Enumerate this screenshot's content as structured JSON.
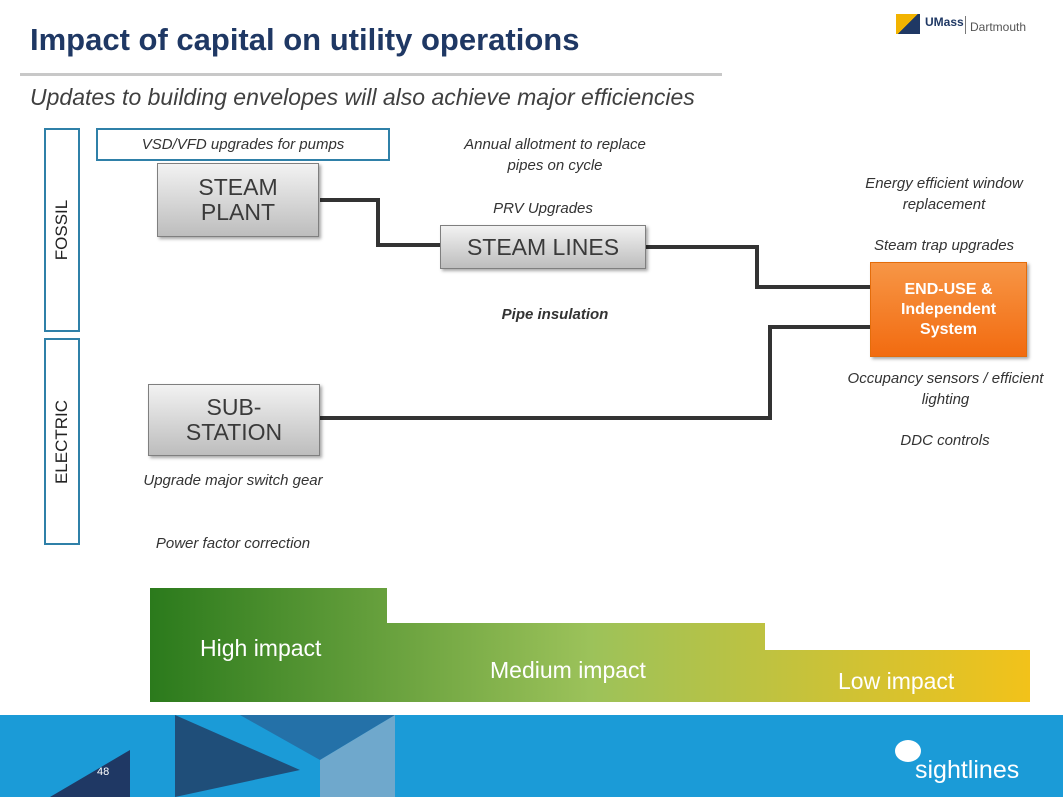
{
  "header": {
    "title": "Impact of capital on utility operations",
    "subtitle": "Updates to building envelopes will also achieve major efficiencies",
    "logo_primary": "UMass",
    "logo_secondary": "Dartmouth"
  },
  "sections": [
    "FOSSIL",
    "ELECTRIC"
  ],
  "nodes": [
    {
      "label": "STEAM PLANT"
    },
    {
      "label": "STEAM LINES"
    },
    {
      "label": "SUB-STATION"
    },
    {
      "label": "END-USE & Independent System"
    }
  ],
  "annotations": [
    "VSD/VFD upgrades for pumps",
    "Annual allotment to replace pipes on cycle",
    "PRV Upgrades",
    "Pipe insulation",
    "Energy efficient window replacement",
    "Steam trap upgrades",
    "Occupancy sensors / efficient lighting",
    "DDC controls",
    "Upgrade major switch gear",
    "Power factor correction"
  ],
  "impact_levels": [
    "High impact",
    "Medium impact",
    "Low impact"
  ],
  "footer": {
    "page_number": "48",
    "brand": "sightlines"
  }
}
